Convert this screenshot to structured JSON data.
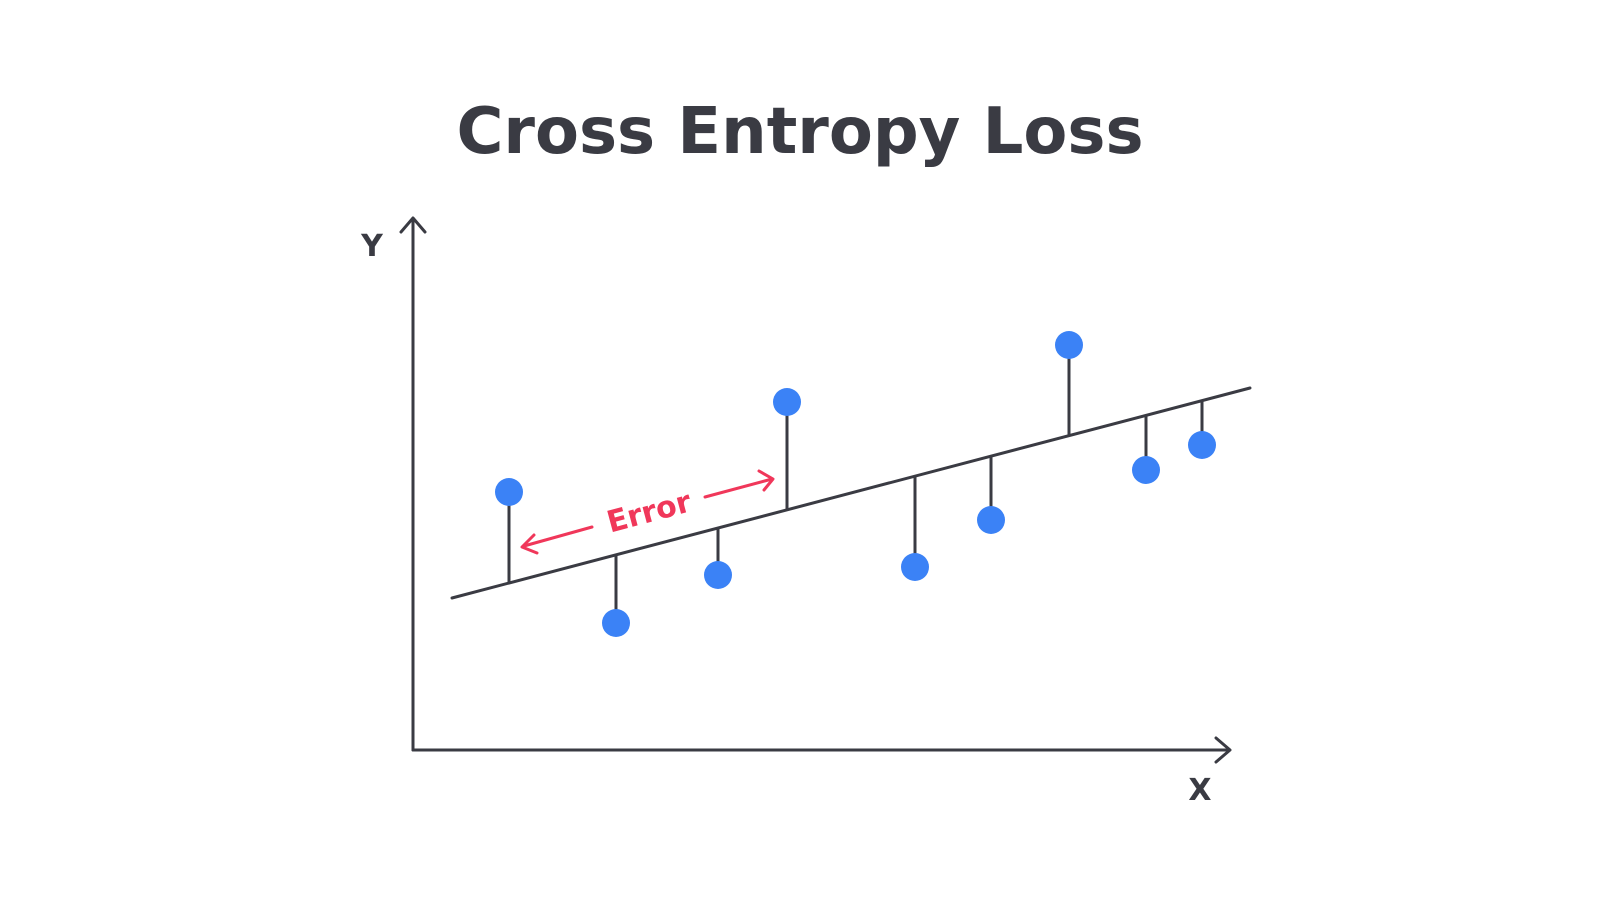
{
  "title": "Cross Entropy Loss",
  "axes": {
    "x_label": "X",
    "y_label": "Y"
  },
  "annotation": {
    "error_label": "Error"
  },
  "colors": {
    "text": "#3a3b43",
    "line": "#3a3b43",
    "point": "#3b82f6",
    "error": "#f0375a"
  }
}
